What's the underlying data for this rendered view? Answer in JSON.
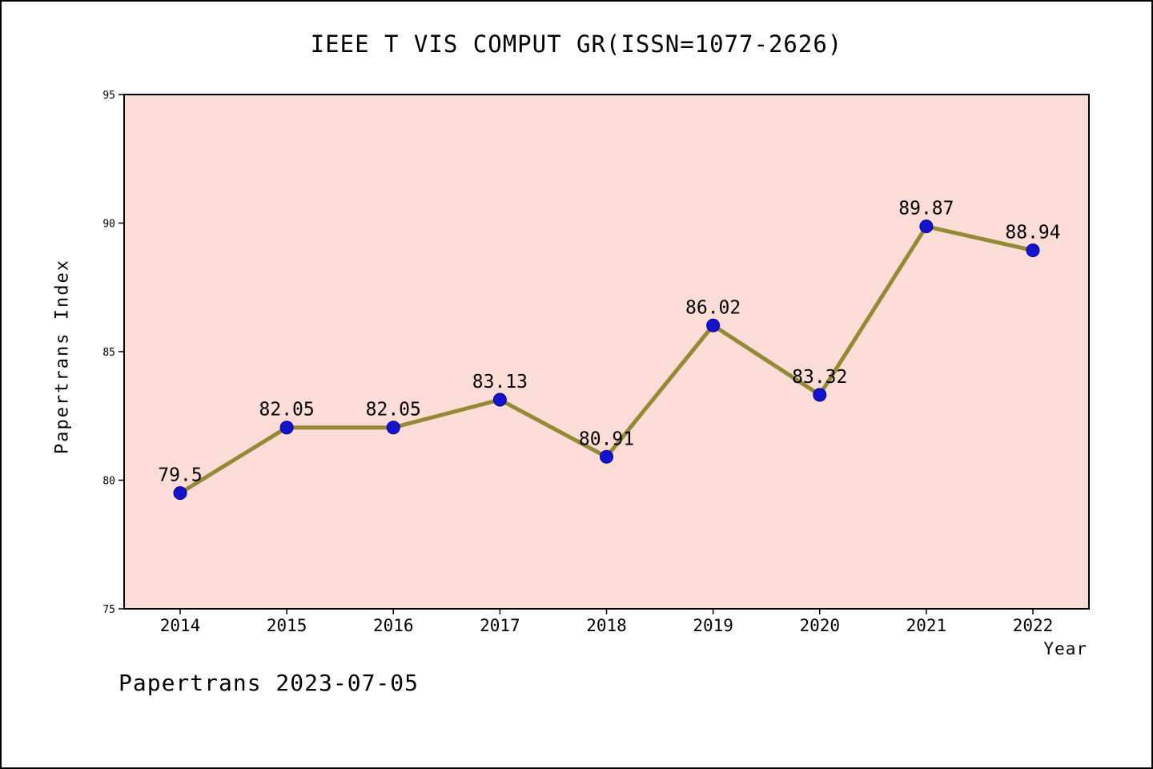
{
  "page": {
    "footer": "Papertrans 2023-07-05"
  },
  "chart_data": {
    "type": "line",
    "title": "IEEE T VIS COMPUT GR(ISSN=1077-2626)",
    "xlabel": "Year",
    "ylabel": "Papertrans Index",
    "x": [
      2014,
      2015,
      2016,
      2017,
      2018,
      2019,
      2020,
      2021,
      2022
    ],
    "values": [
      79.5,
      82.05,
      82.05,
      83.13,
      80.91,
      86.02,
      83.32,
      89.87,
      88.94
    ],
    "point_labels": [
      "79.5",
      "82.05",
      "82.05",
      "83.13",
      "80.91",
      "86.02",
      "83.32",
      "89.87",
      "88.94"
    ],
    "ylim": [
      75,
      95
    ],
    "yticks": [
      75,
      80,
      85,
      90,
      95
    ],
    "grid": false,
    "legend": "none",
    "colors": {
      "plot_bg": "#fbdcd6",
      "line": "#928a35",
      "marker": "#1414cc",
      "marker_edge": "#00009a",
      "axis": "#000000",
      "page_bg": "#ffffff"
    }
  }
}
